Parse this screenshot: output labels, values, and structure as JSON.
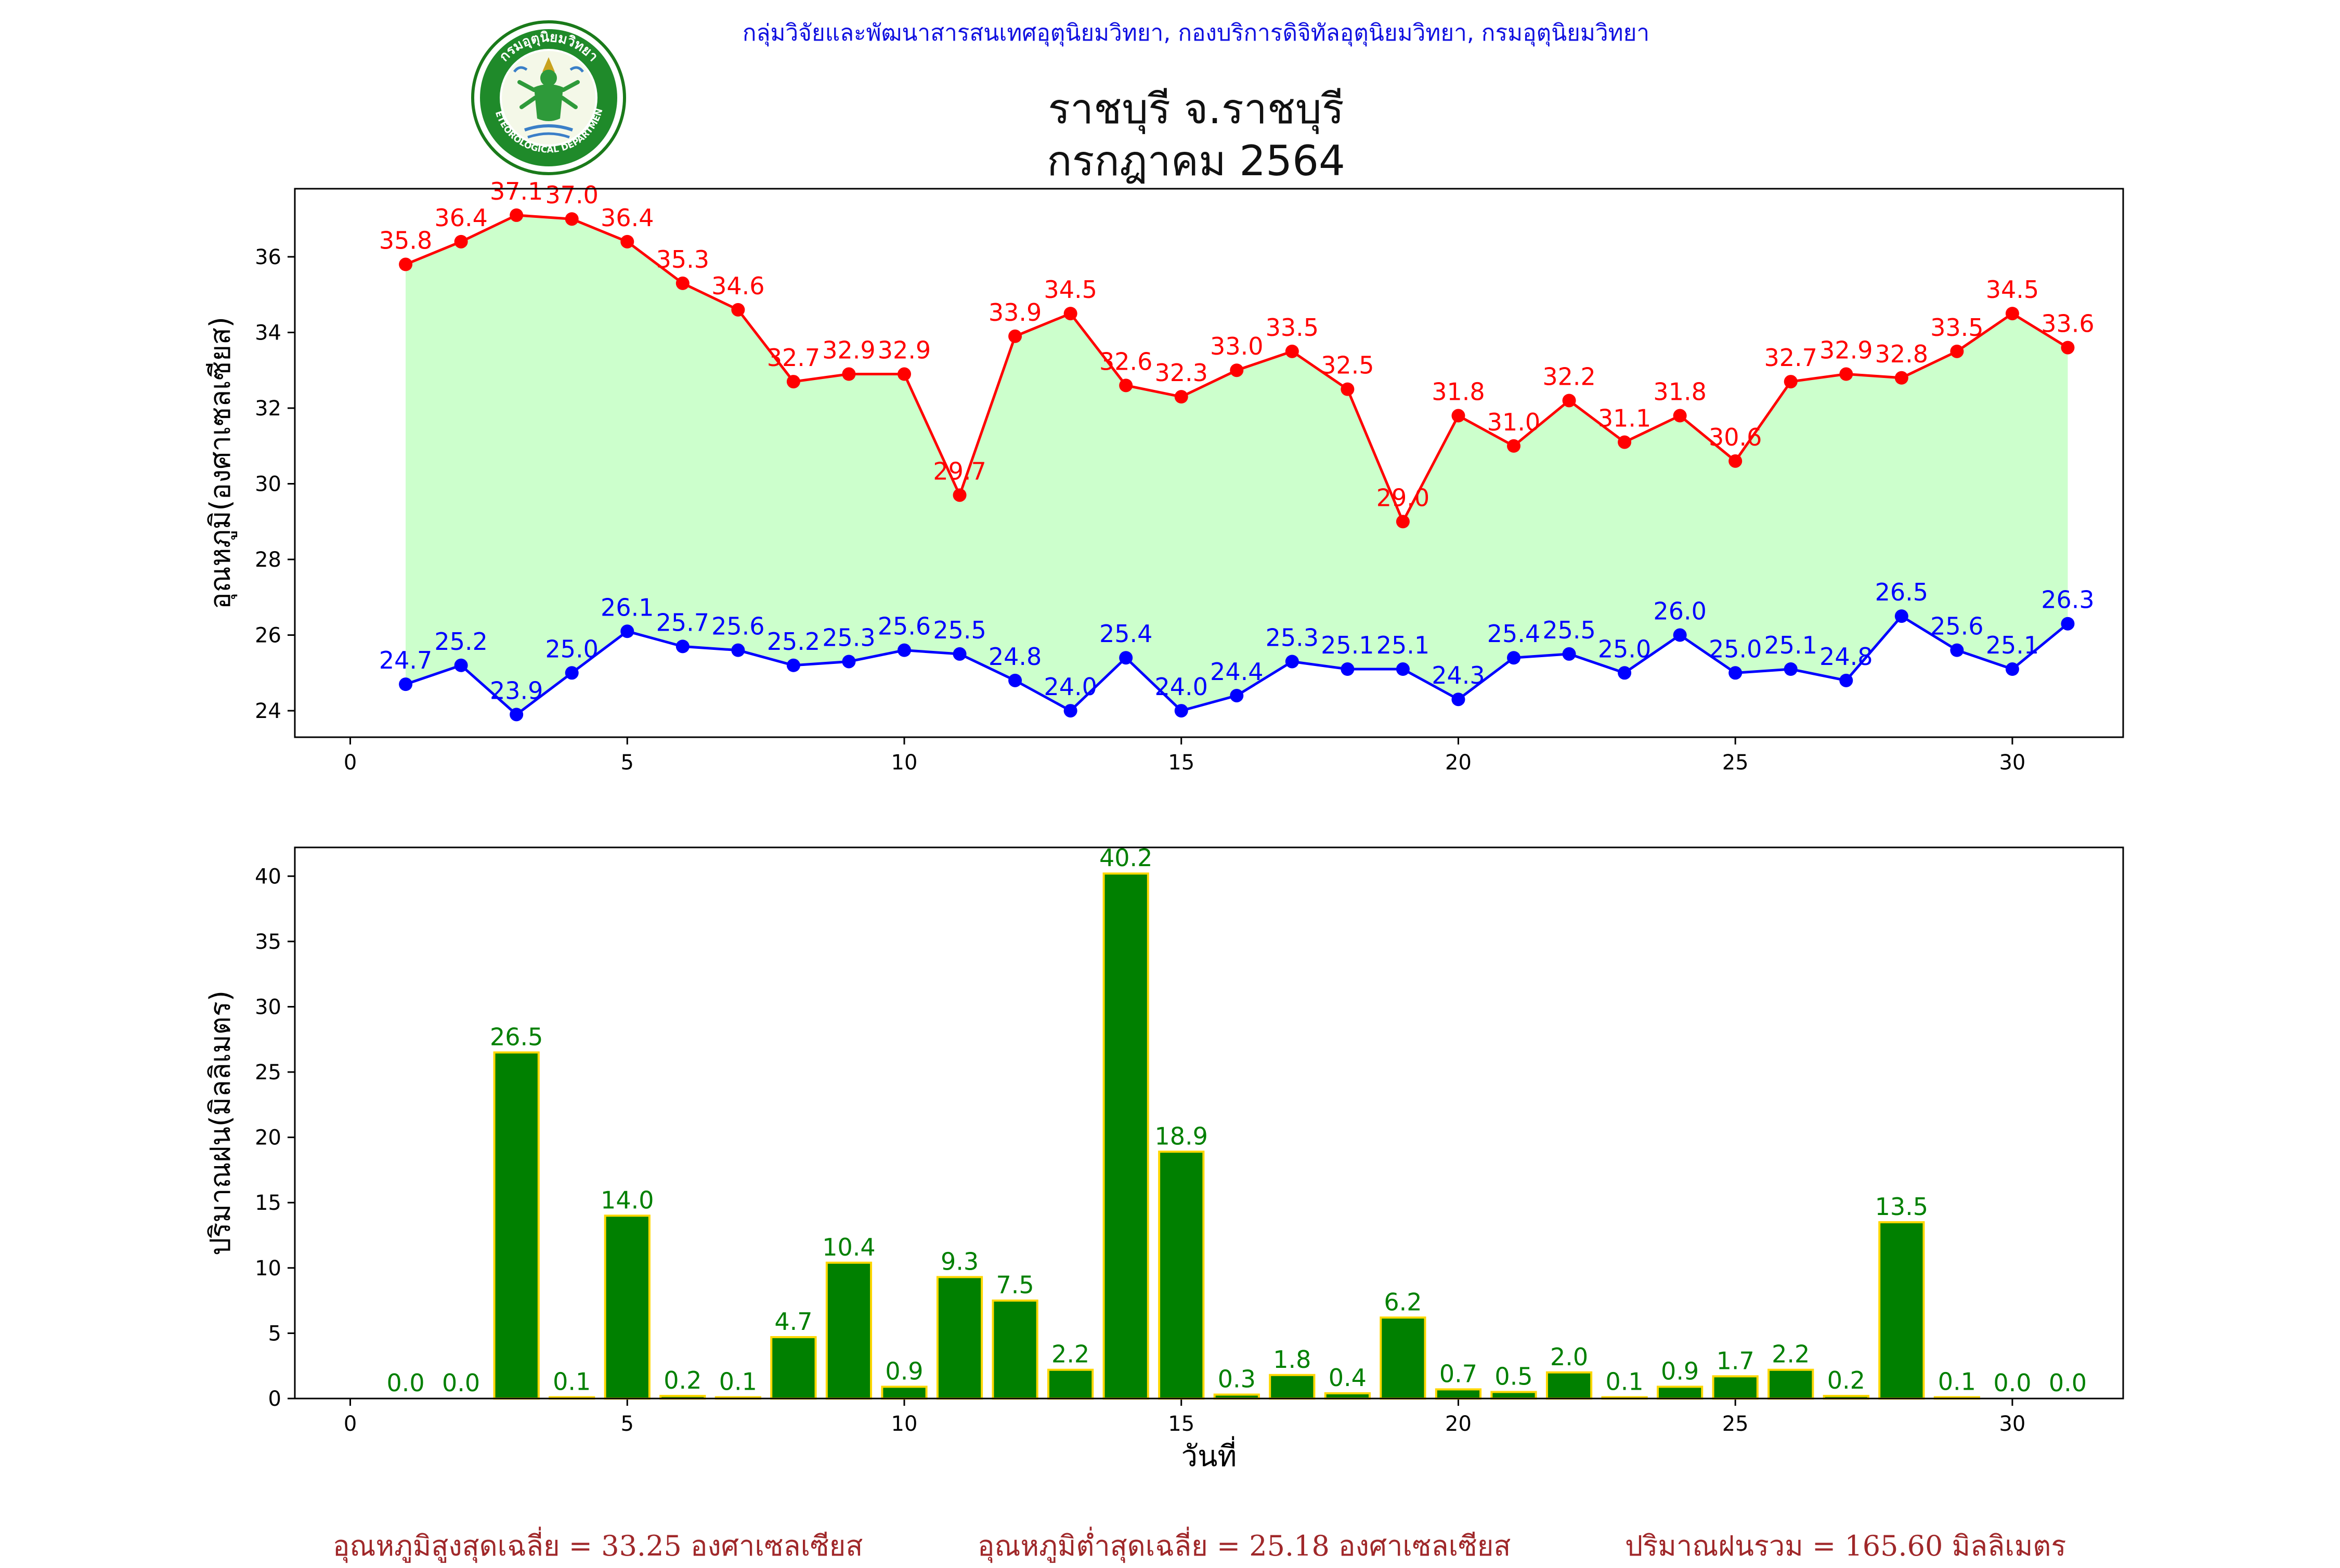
{
  "header": {
    "credit": "กลุ่มวิจัยและพัฒนาสารสนเทศอุตุนิยมวิทยา, กองบริการดิจิทัลอุตุนิยมวิทยา, กรมอุตุนิยมวิทยา",
    "title_line1": "ราชบุรี จ.ราชบุรี",
    "title_line2": "กรกฎาคม 2564"
  },
  "logo": {
    "top_text": "กรมอุตุนิยมวิทยา",
    "bottom_text": "METEOROLOGICAL DEPARTMENT"
  },
  "colors": {
    "max_temp": "#ff0000",
    "min_temp": "#0000ff",
    "temp_fill": "#ccffcc",
    "rain_bar": "#008000",
    "rain_edge": "#ffd700",
    "rain_label": "#008000",
    "footer_text": "#a0282a",
    "header_credit": "#1010e0"
  },
  "chart_data": [
    {
      "type": "line",
      "ylabel": "อุณหภูมิ(องศาเซลเซียส)",
      "xlabel": "",
      "xlim": [
        -1,
        32
      ],
      "ylim": [
        23.3,
        37.8
      ],
      "xticks": [
        0,
        5,
        10,
        15,
        20,
        25,
        30
      ],
      "yticks": [
        24,
        26,
        28,
        30,
        32,
        34,
        36
      ],
      "x": [
        1,
        2,
        3,
        4,
        5,
        6,
        7,
        8,
        9,
        10,
        11,
        12,
        13,
        14,
        15,
        16,
        17,
        18,
        19,
        20,
        21,
        22,
        23,
        24,
        25,
        26,
        27,
        28,
        29,
        30,
        31
      ],
      "fill_between": true,
      "series": [
        {
          "key": "max",
          "values": [
            35.8,
            36.4,
            37.1,
            37.0,
            36.4,
            35.3,
            34.6,
            32.7,
            32.9,
            32.9,
            29.7,
            33.9,
            34.5,
            32.6,
            32.3,
            33.0,
            33.5,
            32.5,
            29.0,
            31.8,
            31.0,
            32.2,
            31.1,
            31.8,
            30.6,
            32.7,
            32.9,
            32.8,
            33.5,
            34.5,
            33.6
          ]
        },
        {
          "key": "min",
          "values": [
            24.7,
            25.2,
            23.9,
            25.0,
            26.1,
            25.7,
            25.6,
            25.2,
            25.3,
            25.6,
            25.5,
            24.8,
            24.0,
            25.4,
            24.0,
            24.4,
            25.3,
            25.1,
            25.1,
            24.3,
            25.4,
            25.5,
            25.0,
            26.0,
            25.0,
            25.1,
            24.8,
            26.5,
            25.6,
            25.1,
            26.3
          ]
        }
      ]
    },
    {
      "type": "bar",
      "ylabel": "ปริมาณฝน(มิลลิเมตร)",
      "xlabel": "วันที่",
      "xlim": [
        -1,
        32
      ],
      "ylim": [
        0,
        42.2
      ],
      "xticks": [
        0,
        5,
        10,
        15,
        20,
        25,
        30
      ],
      "yticks": [
        0,
        5,
        10,
        15,
        20,
        25,
        30,
        35,
        40
      ],
      "x": [
        1,
        2,
        3,
        4,
        5,
        6,
        7,
        8,
        9,
        10,
        11,
        12,
        13,
        14,
        15,
        16,
        17,
        18,
        19,
        20,
        21,
        22,
        23,
        24,
        25,
        26,
        27,
        28,
        29,
        30,
        31
      ],
      "values": [
        0.0,
        0.0,
        26.5,
        0.1,
        14.0,
        0.2,
        0.1,
        4.7,
        10.4,
        0.9,
        9.3,
        7.5,
        2.2,
        40.2,
        18.9,
        0.3,
        1.8,
        0.4,
        6.2,
        0.7,
        0.5,
        2.0,
        0.1,
        0.9,
        1.7,
        2.2,
        0.2,
        13.5,
        0.1,
        0.0,
        0.0
      ]
    }
  ],
  "footer": {
    "avg_max": "อุณหภูมิสูงสุดเฉลี่ย = 33.25 องศาเซลเซียส",
    "avg_min": "อุณหภูมิต่ำสุดเฉลี่ย = 25.18 องศาเซลเซียส",
    "rain_total": "ปริมาณฝนรวม = 165.60 มิลลิเมตร"
  }
}
